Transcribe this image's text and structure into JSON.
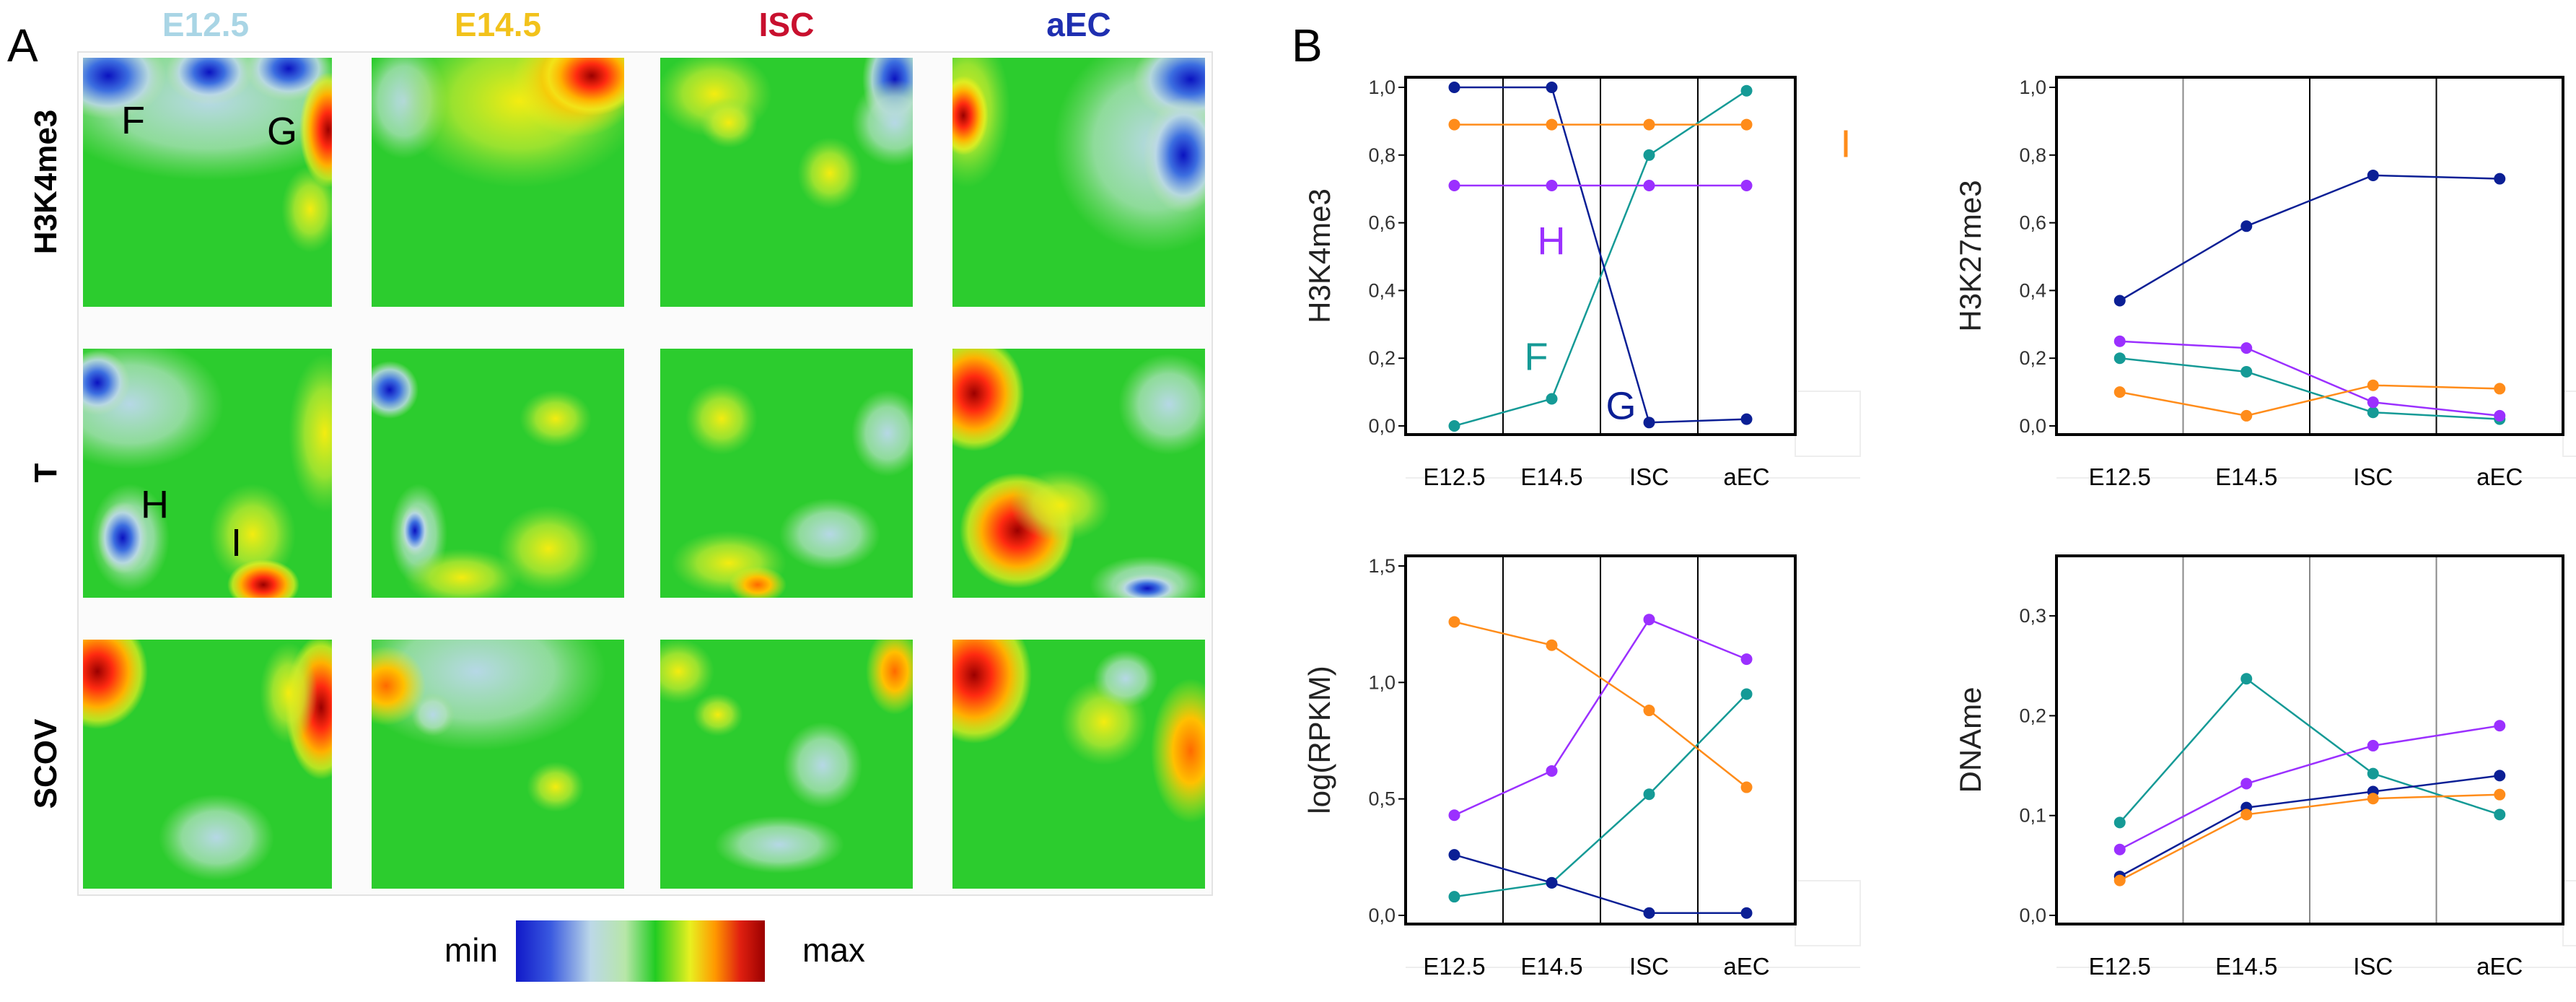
{
  "panel_labels": {
    "a": "A",
    "b": "B"
  },
  "panel_a": {
    "columns": [
      {
        "label": "E12.5",
        "color": "#a9d5e5"
      },
      {
        "label": "E14.5",
        "color": "#f2c21b"
      },
      {
        "label": "ISC",
        "color": "#c8102e"
      },
      {
        "label": "aEC",
        "color": "#1f2fb0"
      }
    ],
    "rows": [
      "H3K4me3",
      "T",
      "SCOV"
    ],
    "spot_labels": [
      "F",
      "G",
      "H",
      "I"
    ],
    "scale": {
      "min_label": "min",
      "max_label": "max",
      "colors": [
        "#1018c8",
        "#3a5ae0",
        "#bcd8e8",
        "#b7e6a8",
        "#22cc22",
        "#e8f020",
        "#ff9800",
        "#e02010",
        "#9a0000"
      ]
    }
  },
  "series_colors": {
    "F": "#159a96",
    "G": "#0b1f95",
    "H": "#9b30ff",
    "I": "#ff8c1a"
  },
  "chart_data": [
    {
      "type": "line",
      "ylabel": "H3K4me3",
      "categories": [
        "E12.5",
        "E14.5",
        "ISC",
        "aEC"
      ],
      "ylim": [
        0,
        1.0
      ],
      "yticks": [
        "0,0",
        "0,2",
        "0,4",
        "0,6",
        "0,8",
        "1,0"
      ],
      "series": [
        {
          "name": "F",
          "values": [
            0.0,
            0.08,
            0.8,
            0.99
          ]
        },
        {
          "name": "G",
          "values": [
            1.0,
            1.0,
            0.01,
            0.02
          ]
        },
        {
          "name": "H",
          "values": [
            0.71,
            0.71,
            0.71,
            0.71
          ]
        },
        {
          "name": "I",
          "values": [
            0.89,
            0.89,
            0.89,
            0.89
          ]
        }
      ],
      "annotations": [
        {
          "text": "F",
          "series": "F"
        },
        {
          "text": "G",
          "series": "G"
        },
        {
          "text": "H",
          "series": "H"
        },
        {
          "text": "I",
          "series": "I"
        }
      ]
    },
    {
      "type": "line",
      "ylabel": "H3K27me3",
      "categories": [
        "E12.5",
        "E14.5",
        "ISC",
        "aEC"
      ],
      "ylim": [
        0,
        1.0
      ],
      "yticks": [
        "0,0",
        "0,2",
        "0,4",
        "0,6",
        "0,8",
        "1,0"
      ],
      "series": [
        {
          "name": "F",
          "values": [
            0.2,
            0.16,
            0.04,
            0.02
          ]
        },
        {
          "name": "G",
          "values": [
            0.37,
            0.59,
            0.74,
            0.73
          ]
        },
        {
          "name": "H",
          "values": [
            0.25,
            0.23,
            0.07,
            0.03
          ]
        },
        {
          "name": "I",
          "values": [
            0.1,
            0.03,
            0.12,
            0.11
          ]
        }
      ]
    },
    {
      "type": "line",
      "ylabel": "log(RPKM)",
      "categories": [
        "E12.5",
        "E14.5",
        "ISC",
        "aEC"
      ],
      "ylim": [
        0,
        1.5
      ],
      "yticks": [
        "0,0",
        "0,5",
        "1,0",
        "1,5"
      ],
      "series": [
        {
          "name": "F",
          "values": [
            0.08,
            0.14,
            0.52,
            0.95
          ]
        },
        {
          "name": "G",
          "values": [
            0.26,
            0.14,
            0.01,
            0.01
          ]
        },
        {
          "name": "H",
          "values": [
            0.43,
            0.62,
            1.27,
            1.1
          ]
        },
        {
          "name": "I",
          "values": [
            1.26,
            1.16,
            0.88,
            0.55
          ]
        }
      ]
    },
    {
      "type": "line",
      "ylabel": "DNAme",
      "categories": [
        "E12.5",
        "E14.5",
        "ISC",
        "aEC"
      ],
      "ylim": [
        0,
        0.35
      ],
      "yticks": [
        "0,0",
        "0,1",
        "0,2",
        "0,3"
      ],
      "series": [
        {
          "name": "F",
          "values": [
            0.093,
            0.237,
            0.142,
            0.101
          ]
        },
        {
          "name": "G",
          "values": [
            0.039,
            0.108,
            0.124,
            0.14
          ]
        },
        {
          "name": "H",
          "values": [
            0.066,
            0.132,
            0.17,
            0.19
          ]
        },
        {
          "name": "I",
          "values": [
            0.035,
            0.101,
            0.117,
            0.121
          ]
        }
      ]
    }
  ]
}
